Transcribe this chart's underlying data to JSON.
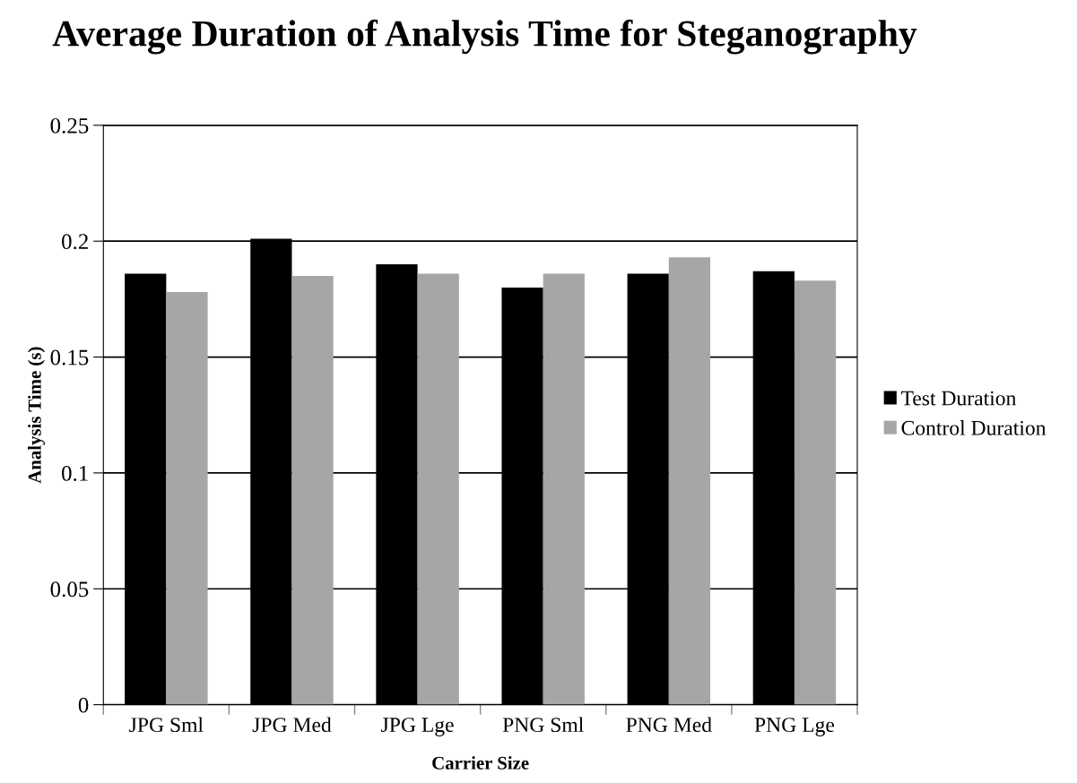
{
  "chart_data": {
    "type": "bar",
    "title": "Average Duration of Analysis Time for Steganography",
    "xlabel": "Carrier Size",
    "ylabel": "Analysis Time (s)",
    "categories": [
      "JPG Sml",
      "JPG Med",
      "JPG Lge",
      "PNG Sml",
      "PNG Med",
      "PNG Lge"
    ],
    "series": [
      {
        "name": "Test Duration",
        "color": "#000000",
        "values": [
          0.186,
          0.201,
          0.19,
          0.18,
          0.186,
          0.187
        ]
      },
      {
        "name": "Control Duration",
        "color": "#a6a6a6",
        "values": [
          0.178,
          0.185,
          0.186,
          0.186,
          0.193,
          0.183
        ]
      }
    ],
    "ylim": [
      0,
      0.25
    ],
    "yticks": [
      0,
      0.05,
      0.1,
      0.15,
      0.2,
      0.25
    ],
    "grid": "y",
    "legend": "right"
  }
}
